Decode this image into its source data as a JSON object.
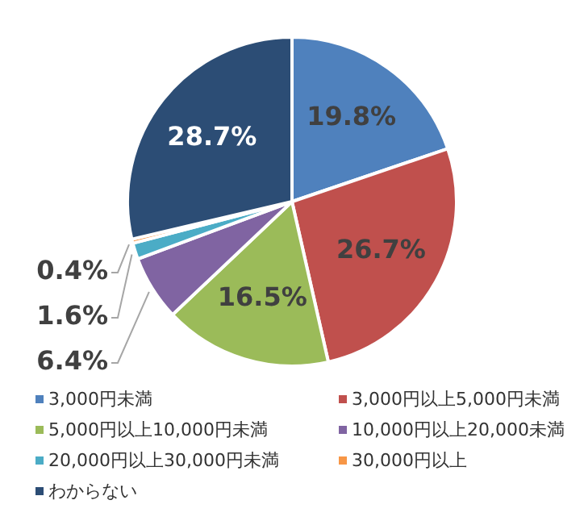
{
  "chart_data": {
    "type": "pie",
    "categories": [
      "3,000円未満",
      "3,000円以上5,000円未満",
      "5,000円以上10,000円未満",
      "10,000円以上20,000未満",
      "20,000円以上30,000円未満",
      "30,000円以上",
      "わからない"
    ],
    "values": [
      19.8,
      26.7,
      16.5,
      6.4,
      1.6,
      0.4,
      28.7
    ],
    "colors": [
      "#4f81bd",
      "#c0504d",
      "#9bbb59",
      "#8064a2",
      "#4bacc6",
      "#f79646",
      "#2c4d75"
    ],
    "value_labels": [
      "19.8%",
      "26.7%",
      "16.5%",
      "6.4%",
      "1.6%",
      "0.4%",
      "28.7%"
    ],
    "legend": "bottom"
  }
}
